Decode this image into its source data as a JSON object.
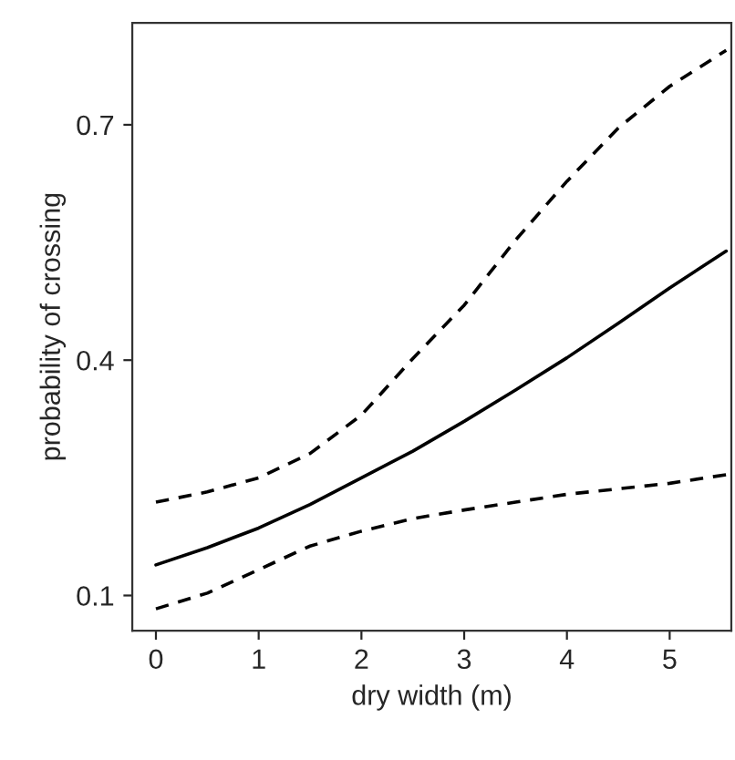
{
  "chart_data": {
    "type": "line",
    "xlabel": "dry width (m)",
    "ylabel": "probability of crossing",
    "x": [
      0,
      0.5,
      1,
      1.5,
      2,
      2.5,
      3,
      3.5,
      4,
      4.5,
      5,
      5.55
    ],
    "series": [
      {
        "color": "#000000",
        "line_style": "solid",
        "values": [
          0.139,
          0.161,
          0.186,
          0.216,
          0.25,
          0.284,
          0.322,
          0.362,
          0.403,
          0.447,
          0.492,
          0.539
        ]
      },
      {
        "color": "#000000",
        "line_style": "dashed",
        "values": [
          0.219,
          0.232,
          0.25,
          0.281,
          0.33,
          0.402,
          0.47,
          0.553,
          0.628,
          0.696,
          0.749,
          0.795
        ]
      },
      {
        "color": "#000000",
        "line_style": "dashed",
        "values": [
          0.083,
          0.103,
          0.133,
          0.163,
          0.182,
          0.198,
          0.209,
          0.219,
          0.229,
          0.236,
          0.243,
          0.254
        ]
      }
    ],
    "xlim": [
      -0.23,
      5.6
    ],
    "ylim": [
      0.055,
      0.83
    ],
    "xticks": [
      0,
      1,
      2,
      3,
      4,
      5
    ],
    "yticks": [
      0.1,
      0.4,
      0.7
    ],
    "grid": false,
    "legend": false
  }
}
